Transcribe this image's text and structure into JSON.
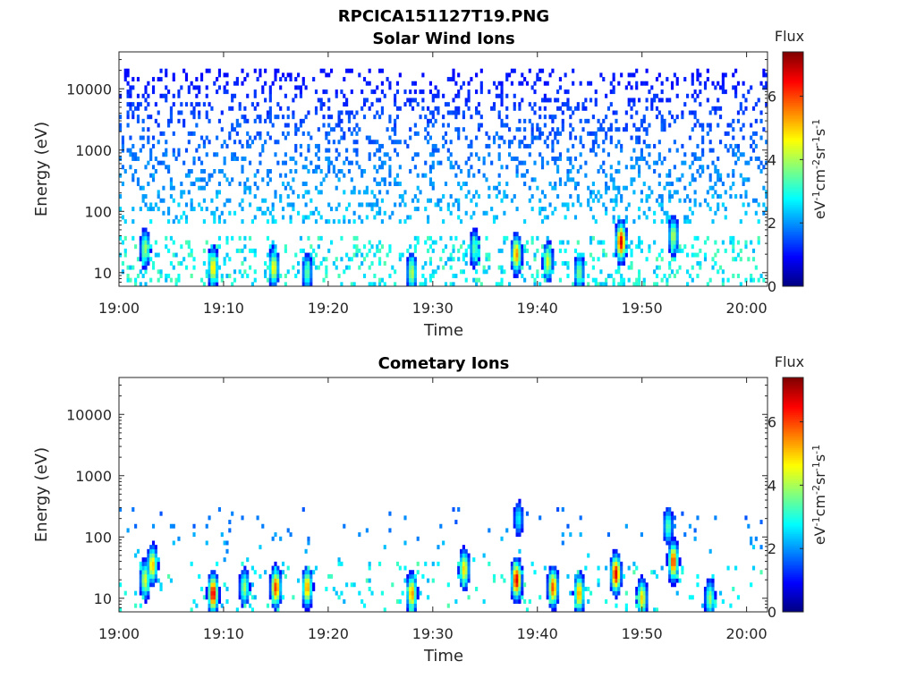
{
  "figure_title": "RPCICA151127T19.PNG",
  "colormap": "jet",
  "chart_data": [
    {
      "type": "heatmap",
      "title": "Solar Wind Ions",
      "xlabel": "Time",
      "ylabel": "Energy (eV)",
      "x_ticks": [
        "19:00",
        "19:10",
        "19:20",
        "19:30",
        "19:40",
        "19:50",
        "20:00"
      ],
      "x_range_minutes": [
        0,
        62
      ],
      "y_scale": "log",
      "y_ticks": [
        "10",
        "100",
        "1000",
        "10000"
      ],
      "y_range": [
        6,
        40000
      ],
      "colorbar": {
        "title": "Flux",
        "label": "eV-1cm-2sr-1s-1",
        "ticks": [
          "0",
          "2",
          "4",
          "6"
        ],
        "range": [
          0,
          7.4
        ]
      },
      "grid": false,
      "background_scatter": {
        "energy_range": [
          60,
          20000
        ],
        "flux_range": [
          1.0,
          2.4
        ]
      },
      "hotspots": [
        {
          "t": 2.5,
          "e": 25,
          "flux": 4.0
        },
        {
          "t": 9.0,
          "e": 12,
          "flux": 5.0
        },
        {
          "t": 14.8,
          "e": 12,
          "flux": 4.8
        },
        {
          "t": 18.0,
          "e": 10,
          "flux": 3.6
        },
        {
          "t": 28.0,
          "e": 10,
          "flux": 4.2
        },
        {
          "t": 34.0,
          "e": 25,
          "flux": 3.5
        },
        {
          "t": 38.0,
          "e": 20,
          "flux": 5.5
        },
        {
          "t": 41.0,
          "e": 15,
          "flux": 4.5
        },
        {
          "t": 44.0,
          "e": 10,
          "flux": 3.8
        },
        {
          "t": 48.0,
          "e": 32,
          "flux": 6.8
        },
        {
          "t": 53.0,
          "e": 40,
          "flux": 4.2
        }
      ]
    },
    {
      "type": "heatmap",
      "title": "Cometary Ions",
      "xlabel": "Time",
      "ylabel": "Energy (eV)",
      "x_ticks": [
        "19:00",
        "19:10",
        "19:20",
        "19:30",
        "19:40",
        "19:50",
        "20:00"
      ],
      "x_range_minutes": [
        0,
        62
      ],
      "y_scale": "log",
      "y_ticks": [
        "10",
        "100",
        "1000",
        "10000"
      ],
      "y_range": [
        6,
        40000
      ],
      "colorbar": {
        "title": "Flux",
        "label": "eV-1cm-2sr-1s-1",
        "ticks": [
          "0",
          "2",
          "4",
          "6"
        ],
        "range": [
          0,
          7.4
        ]
      },
      "grid": false,
      "background_scatter": {
        "energy_range": [
          20,
          300
        ],
        "flux_range": [
          1.6,
          2.6
        ]
      },
      "hotspots": [
        {
          "t": 2.5,
          "e": 20,
          "flux": 4.5
        },
        {
          "t": 3.2,
          "e": 35,
          "flux": 5.2
        },
        {
          "t": 9.0,
          "e": 12,
          "flux": 6.8
        },
        {
          "t": 12.0,
          "e": 15,
          "flux": 4.0
        },
        {
          "t": 15.0,
          "e": 15,
          "flux": 6.2
        },
        {
          "t": 18.0,
          "e": 15,
          "flux": 5.5
        },
        {
          "t": 28.0,
          "e": 12,
          "flux": 5.5
        },
        {
          "t": 33.0,
          "e": 30,
          "flux": 5.0
        },
        {
          "t": 38.0,
          "e": 20,
          "flux": 6.8
        },
        {
          "t": 38.2,
          "e": 200,
          "flux": 2.8
        },
        {
          "t": 41.5,
          "e": 15,
          "flux": 6.0
        },
        {
          "t": 44.0,
          "e": 12,
          "flux": 5.5
        },
        {
          "t": 47.5,
          "e": 25,
          "flux": 6.8
        },
        {
          "t": 50.0,
          "e": 10,
          "flux": 5.0
        },
        {
          "t": 53.0,
          "e": 40,
          "flux": 6.2
        },
        {
          "t": 52.5,
          "e": 150,
          "flux": 3.5
        },
        {
          "t": 56.5,
          "e": 10,
          "flux": 4.0
        }
      ]
    }
  ]
}
